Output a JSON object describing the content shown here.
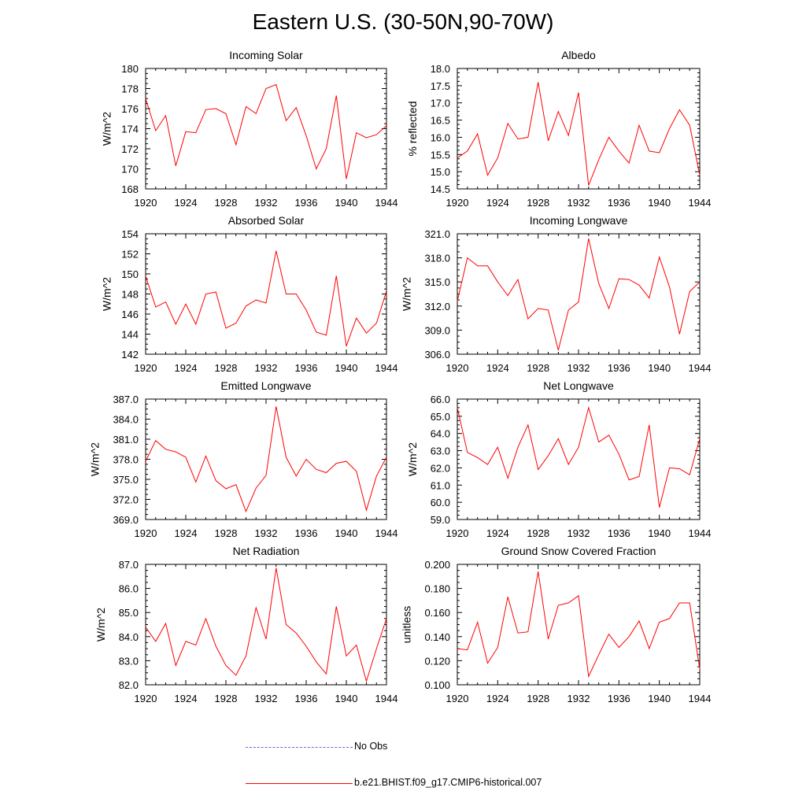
{
  "figure_title": "Eastern U.S. (30-50N,90-70W)",
  "legend": {
    "obs_label": "No Obs",
    "model_label": "b.e21.BHIST.f09_g17.CMIP6-historical.007",
    "obs_color": "#6a6ad8",
    "model_color": "#ff0000"
  },
  "chart_data": [
    {
      "type": "line",
      "title": "Incoming Solar",
      "xlabel": "",
      "ylabel": "W/m^2",
      "xlim": [
        1920,
        1944
      ],
      "ylim": [
        168,
        180
      ],
      "xticks": [
        1920,
        1924,
        1928,
        1932,
        1936,
        1940,
        1944
      ],
      "yticks": [
        168,
        170,
        172,
        174,
        176,
        178,
        180
      ],
      "ytick_labels": [
        "168",
        "170",
        "172",
        "174",
        "176",
        "178",
        "180"
      ],
      "series": [
        {
          "name": "b.e21.BHIST.f09_g17.CMIP6-historical.007",
          "color": "#ff0000",
          "x": [
            1920,
            1921,
            1922,
            1923,
            1924,
            1925,
            1926,
            1927,
            1928,
            1929,
            1930,
            1931,
            1932,
            1933,
            1934,
            1935,
            1936,
            1937,
            1938,
            1939,
            1940,
            1941,
            1942,
            1943,
            1944
          ],
          "values": [
            177.0,
            173.8,
            175.3,
            170.3,
            173.7,
            173.6,
            175.9,
            176.0,
            175.5,
            172.4,
            176.2,
            175.5,
            178.0,
            178.4,
            174.8,
            176.1,
            173.3,
            170.0,
            172.0,
            177.3,
            169.0,
            173.6,
            173.1,
            173.4,
            174.3
          ]
        }
      ]
    },
    {
      "type": "line",
      "title": "Albedo",
      "xlabel": "",
      "ylabel": "% reflected",
      "xlim": [
        1920,
        1944
      ],
      "ylim": [
        14.5,
        18.0
      ],
      "xticks": [
        1920,
        1924,
        1928,
        1932,
        1936,
        1940,
        1944
      ],
      "yticks": [
        14.5,
        15.0,
        15.5,
        16.0,
        16.5,
        17.0,
        17.5,
        18.0
      ],
      "ytick_labels": [
        "14.5",
        "15.0",
        "15.5",
        "16.0",
        "16.5",
        "17.0",
        "17.5",
        "18.0"
      ],
      "series": [
        {
          "name": "b.e21.BHIST.f09_g17.CMIP6-historical.007",
          "color": "#ff0000",
          "x": [
            1920,
            1921,
            1922,
            1923,
            1924,
            1925,
            1926,
            1927,
            1928,
            1929,
            1930,
            1931,
            1932,
            1933,
            1934,
            1935,
            1936,
            1937,
            1938,
            1939,
            1940,
            1941,
            1942,
            1943,
            1944
          ],
          "values": [
            15.4,
            15.6,
            16.1,
            14.9,
            15.4,
            16.4,
            15.95,
            16.0,
            17.6,
            15.9,
            16.75,
            16.05,
            17.3,
            14.6,
            15.35,
            16.0,
            15.6,
            15.25,
            16.35,
            15.6,
            15.55,
            16.25,
            16.8,
            16.35,
            14.9
          ]
        }
      ]
    },
    {
      "type": "line",
      "title": "Absorbed Solar",
      "xlabel": "",
      "ylabel": "W/m^2",
      "xlim": [
        1920,
        1944
      ],
      "ylim": [
        142,
        154
      ],
      "xticks": [
        1920,
        1924,
        1928,
        1932,
        1936,
        1940,
        1944
      ],
      "yticks": [
        142,
        144,
        146,
        148,
        150,
        152,
        154
      ],
      "ytick_labels": [
        "142",
        "144",
        "146",
        "148",
        "150",
        "152",
        "154"
      ],
      "series": [
        {
          "name": "b.e21.BHIST.f09_g17.CMIP6-historical.007",
          "color": "#ff0000",
          "x": [
            1920,
            1921,
            1922,
            1923,
            1924,
            1925,
            1926,
            1927,
            1928,
            1929,
            1930,
            1931,
            1932,
            1933,
            1934,
            1935,
            1936,
            1937,
            1938,
            1939,
            1940,
            1941,
            1942,
            1943,
            1944
          ],
          "values": [
            149.8,
            146.7,
            147.2,
            145.0,
            147.0,
            145.0,
            148.0,
            148.2,
            144.6,
            145.1,
            146.8,
            147.4,
            147.1,
            152.3,
            148.0,
            148.0,
            146.4,
            144.2,
            143.9,
            149.8,
            142.8,
            145.6,
            144.1,
            145.1,
            148.3
          ]
        }
      ]
    },
    {
      "type": "line",
      "title": "Incoming Longwave",
      "xlabel": "",
      "ylabel": "W/m^2",
      "xlim": [
        1920,
        1944
      ],
      "ylim": [
        306,
        321
      ],
      "xticks": [
        1920,
        1924,
        1928,
        1932,
        1936,
        1940,
        1944
      ],
      "yticks": [
        306,
        309,
        312,
        315,
        318,
        321
      ],
      "ytick_labels": [
        "306.0",
        "309.0",
        "312.0",
        "315.0",
        "318.0",
        "321.0"
      ],
      "series": [
        {
          "name": "b.e21.BHIST.f09_g17.CMIP6-historical.007",
          "color": "#ff0000",
          "x": [
            1920,
            1921,
            1922,
            1923,
            1924,
            1925,
            1926,
            1927,
            1928,
            1929,
            1930,
            1931,
            1932,
            1933,
            1934,
            1935,
            1936,
            1937,
            1938,
            1939,
            1940,
            1941,
            1942,
            1943,
            1944
          ],
          "values": [
            312.6,
            318.0,
            317.0,
            317.0,
            315.0,
            313.3,
            315.3,
            310.4,
            311.7,
            311.5,
            306.5,
            311.5,
            312.5,
            320.4,
            314.8,
            311.7,
            315.4,
            315.3,
            314.6,
            313.0,
            318.1,
            314.4,
            308.5,
            313.8,
            315.0
          ]
        }
      ]
    },
    {
      "type": "line",
      "title": "Emitted Longwave",
      "xlabel": "",
      "ylabel": "W/m^2",
      "xlim": [
        1920,
        1944
      ],
      "ylim": [
        369,
        387
      ],
      "xticks": [
        1920,
        1924,
        1928,
        1932,
        1936,
        1940,
        1944
      ],
      "yticks": [
        369,
        372,
        375,
        378,
        381,
        384,
        387
      ],
      "ytick_labels": [
        "369.0",
        "372.0",
        "375.0",
        "378.0",
        "381.0",
        "384.0",
        "387.0"
      ],
      "series": [
        {
          "name": "b.e21.BHIST.f09_g17.CMIP6-historical.007",
          "color": "#ff0000",
          "x": [
            1920,
            1921,
            1922,
            1923,
            1924,
            1925,
            1926,
            1927,
            1928,
            1929,
            1930,
            1931,
            1932,
            1933,
            1934,
            1935,
            1936,
            1937,
            1938,
            1939,
            1940,
            1941,
            1942,
            1943,
            1944
          ],
          "values": [
            377.7,
            380.8,
            379.5,
            379.1,
            378.3,
            374.6,
            378.5,
            374.8,
            373.6,
            374.2,
            370.2,
            373.7,
            375.6,
            385.9,
            378.3,
            375.5,
            378.0,
            376.5,
            376.0,
            377.4,
            377.7,
            376.2,
            370.4,
            375.5,
            378.3
          ]
        }
      ]
    },
    {
      "type": "line",
      "title": "Net Longwave",
      "xlabel": "",
      "ylabel": "W/m^2",
      "xlim": [
        1920,
        1944
      ],
      "ylim": [
        59,
        66
      ],
      "xticks": [
        1920,
        1924,
        1928,
        1932,
        1936,
        1940,
        1944
      ],
      "yticks": [
        59,
        60,
        61,
        62,
        63,
        64,
        65,
        66
      ],
      "ytick_labels": [
        "59.0",
        "60.0",
        "61.0",
        "62.0",
        "63.0",
        "64.0",
        "65.0",
        "66.0"
      ],
      "series": [
        {
          "name": "b.e21.BHIST.f09_g17.CMIP6-historical.007",
          "color": "#ff0000",
          "x": [
            1920,
            1921,
            1922,
            1923,
            1924,
            1925,
            1926,
            1927,
            1928,
            1929,
            1930,
            1931,
            1932,
            1933,
            1934,
            1935,
            1936,
            1937,
            1938,
            1939,
            1940,
            1941,
            1942,
            1943,
            1944
          ],
          "values": [
            65.5,
            62.9,
            62.6,
            62.2,
            63.2,
            61.4,
            63.2,
            64.5,
            61.9,
            62.7,
            63.7,
            62.2,
            63.2,
            65.5,
            63.5,
            63.9,
            62.8,
            61.3,
            61.5,
            64.5,
            59.7,
            62.0,
            61.95,
            61.6,
            63.7
          ]
        }
      ]
    },
    {
      "type": "line",
      "title": "Net Radiation",
      "xlabel": "",
      "ylabel": "W/m^2",
      "xlim": [
        1920,
        1944
      ],
      "ylim": [
        82,
        87
      ],
      "xticks": [
        1920,
        1924,
        1928,
        1932,
        1936,
        1940,
        1944
      ],
      "yticks": [
        82,
        83,
        84,
        85,
        86,
        87
      ],
      "ytick_labels": [
        "82.0",
        "83.0",
        "84.0",
        "85.0",
        "86.0",
        "87.0"
      ],
      "series": [
        {
          "name": "b.e21.BHIST.f09_g17.CMIP6-historical.007",
          "color": "#ff0000",
          "x": [
            1920,
            1921,
            1922,
            1923,
            1924,
            1925,
            1926,
            1927,
            1928,
            1929,
            1930,
            1931,
            1932,
            1933,
            1934,
            1935,
            1936,
            1937,
            1938,
            1939,
            1940,
            1941,
            1942,
            1943,
            1944
          ],
          "values": [
            84.4,
            83.8,
            84.55,
            82.8,
            83.8,
            83.65,
            84.75,
            83.6,
            82.8,
            82.4,
            83.2,
            85.2,
            83.9,
            86.85,
            84.5,
            84.15,
            83.6,
            82.95,
            82.45,
            85.25,
            83.2,
            83.65,
            82.15,
            83.5,
            84.75
          ]
        }
      ]
    },
    {
      "type": "line",
      "title": "Ground Snow Covered Fraction",
      "xlabel": "",
      "ylabel": "unitless",
      "xlim": [
        1920,
        1944
      ],
      "ylim": [
        0.1,
        0.2
      ],
      "xticks": [
        1920,
        1924,
        1928,
        1932,
        1936,
        1940,
        1944
      ],
      "yticks": [
        0.1,
        0.12,
        0.14,
        0.16,
        0.18,
        0.2
      ],
      "ytick_labels": [
        "0.100",
        "0.120",
        "0.140",
        "0.160",
        "0.180",
        "0.200"
      ],
      "series": [
        {
          "name": "b.e21.BHIST.f09_g17.CMIP6-historical.007",
          "color": "#ff0000",
          "x": [
            1920,
            1921,
            1922,
            1923,
            1924,
            1925,
            1926,
            1927,
            1928,
            1929,
            1930,
            1931,
            1932,
            1933,
            1934,
            1935,
            1936,
            1937,
            1938,
            1939,
            1940,
            1941,
            1942,
            1943,
            1944
          ],
          "values": [
            0.13,
            0.129,
            0.152,
            0.118,
            0.131,
            0.173,
            0.143,
            0.144,
            0.194,
            0.138,
            0.166,
            0.168,
            0.174,
            0.107,
            0.125,
            0.142,
            0.131,
            0.14,
            0.153,
            0.13,
            0.152,
            0.155,
            0.168,
            0.168,
            0.113
          ]
        }
      ]
    }
  ]
}
